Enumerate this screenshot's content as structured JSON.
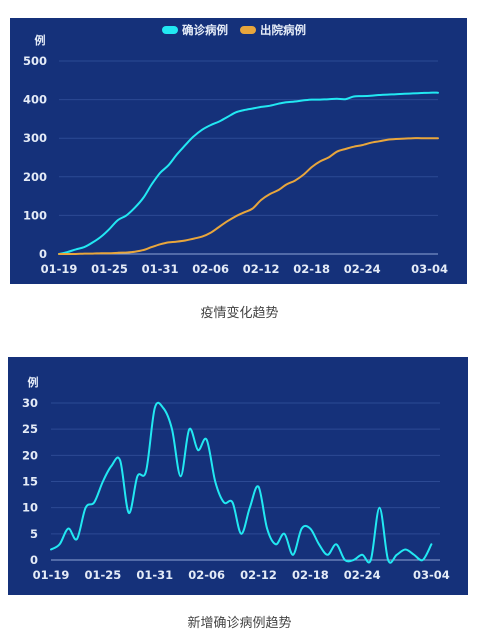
{
  "colors": {
    "panel_bg": "#15317a",
    "grid": "#2c4a94",
    "axis": "#8ea5d6",
    "confirmed": "#22e8f2",
    "discharged": "#e8a63c"
  },
  "chart_data": [
    {
      "type": "line",
      "unit": "例",
      "ylim": [
        0,
        500
      ],
      "yticks": [
        0,
        100,
        200,
        300,
        400,
        500
      ],
      "xlim": [
        0,
        45
      ],
      "x_tick_labels": [
        "01-19",
        "01-25",
        "01-31",
        "02-06",
        "02-12",
        "02-18",
        "02-24",
        "03-04"
      ],
      "x_tick_positions": [
        0,
        6,
        12,
        18,
        24,
        30,
        36,
        44
      ],
      "grid": true,
      "legend_position": "top-center",
      "caption": "疫情变化趋势",
      "series": [
        {
          "name": "确诊病例",
          "color": "#22e8f2",
          "x": [
            0,
            1,
            2,
            3,
            4,
            5,
            6,
            7,
            8,
            9,
            10,
            11,
            12,
            13,
            14,
            15,
            16,
            17,
            18,
            19,
            20,
            21,
            22,
            23,
            24,
            25,
            26,
            27,
            28,
            29,
            30,
            31,
            32,
            33,
            34,
            35,
            36,
            37,
            38,
            39,
            40,
            41,
            42,
            43,
            44,
            45
          ],
          "values": [
            0,
            5,
            12,
            18,
            30,
            45,
            65,
            88,
            100,
            120,
            145,
            180,
            210,
            230,
            258,
            282,
            305,
            322,
            334,
            343,
            355,
            367,
            373,
            377,
            381,
            384,
            389,
            393,
            395,
            398,
            400,
            400,
            401,
            402,
            401,
            408,
            409,
            410,
            412,
            413,
            414,
            415,
            416,
            417,
            418,
            418
          ]
        },
        {
          "name": "出院病例",
          "color": "#e8a63c",
          "x": [
            0,
            1,
            2,
            3,
            4,
            5,
            6,
            7,
            8,
            9,
            10,
            11,
            12,
            13,
            14,
            15,
            16,
            17,
            18,
            19,
            20,
            21,
            22,
            23,
            24,
            25,
            26,
            27,
            28,
            29,
            30,
            31,
            32,
            33,
            34,
            35,
            36,
            37,
            38,
            39,
            40,
            41,
            42,
            43,
            44,
            45
          ],
          "values": [
            0,
            0,
            0,
            1,
            1,
            2,
            2,
            3,
            4,
            6,
            10,
            18,
            25,
            30,
            32,
            35,
            40,
            45,
            55,
            70,
            85,
            98,
            108,
            118,
            140,
            155,
            165,
            180,
            190,
            205,
            225,
            240,
            250,
            265,
            272,
            278,
            282,
            288,
            292,
            296,
            298,
            299,
            300,
            300,
            300,
            300
          ]
        }
      ]
    },
    {
      "type": "line",
      "unit": "例",
      "ylim": [
        0,
        30
      ],
      "yticks": [
        0,
        5,
        10,
        15,
        20,
        25,
        30
      ],
      "xlim": [
        0,
        45
      ],
      "x_tick_labels": [
        "01-19",
        "01-25",
        "01-31",
        "02-06",
        "02-12",
        "02-18",
        "02-24",
        "03-04"
      ],
      "x_tick_positions": [
        0,
        6,
        12,
        18,
        24,
        30,
        36,
        44
      ],
      "grid": true,
      "caption": "新增确诊病例趋势",
      "series": [
        {
          "color": "#22e8f2",
          "x": [
            0,
            1,
            2,
            3,
            4,
            5,
            6,
            7,
            8,
            9,
            10,
            11,
            12,
            13,
            14,
            15,
            16,
            17,
            18,
            19,
            20,
            21,
            22,
            23,
            24,
            25,
            26,
            27,
            28,
            29,
            30,
            31,
            32,
            33,
            34,
            35,
            36,
            37,
            38,
            39,
            40,
            41,
            42,
            43,
            44
          ],
          "values": [
            2,
            3,
            6,
            4,
            10,
            11,
            15,
            18,
            19,
            9,
            16,
            17,
            29,
            29,
            25,
            16,
            25,
            21,
            23,
            15,
            11,
            11,
            5,
            10,
            14,
            6,
            3,
            5,
            1,
            6,
            6,
            3,
            1,
            3,
            0,
            0,
            1,
            0,
            10,
            0,
            1,
            2,
            1,
            0,
            3
          ]
        }
      ]
    }
  ]
}
